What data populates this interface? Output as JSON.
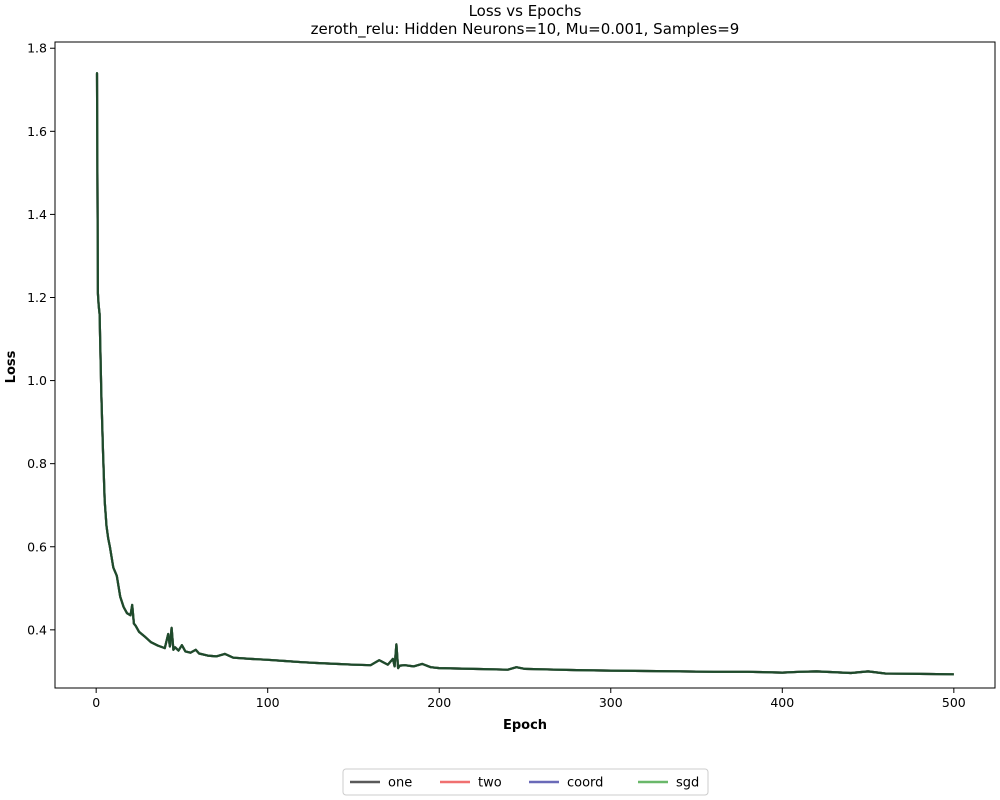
{
  "chart_data": {
    "type": "line",
    "title": "Loss vs Epochs",
    "subtitle": "zeroth_relu: Hidden Neurons=10, Mu=0.001, Samples=9",
    "xlabel": "Epoch",
    "ylabel": "Loss",
    "xlim": [
      -24,
      524
    ],
    "ylim": [
      0.26,
      1.815
    ],
    "x_ticks": [
      0,
      100,
      200,
      300,
      400,
      500
    ],
    "y_ticks": [
      0.4,
      0.6,
      0.8,
      1.0,
      1.2,
      1.4,
      1.6,
      1.8
    ],
    "x_tick_labels": [
      "0",
      "100",
      "200",
      "300",
      "400",
      "500"
    ],
    "y_tick_labels": [
      "0.4",
      "0.6",
      "0.8",
      "1.0",
      "1.2",
      "1.4",
      "1.6",
      "1.8"
    ],
    "legend_position": "bottom-center",
    "grid": false,
    "series": [
      {
        "name": "one",
        "color": "#595959"
      },
      {
        "name": "two",
        "color": "#f07070"
      },
      {
        "name": "coord",
        "color": "#6a6ab8"
      },
      {
        "name": "sgd",
        "color": "#6ab86a"
      }
    ],
    "curve_color": "#1f4a2c",
    "curve": {
      "x": [
        0,
        0.5,
        1,
        1.5,
        2,
        3,
        4,
        5,
        6,
        7,
        8,
        10,
        12,
        14,
        16,
        18,
        20,
        21,
        22,
        23,
        25,
        28,
        32,
        36,
        40,
        42,
        43,
        44,
        45,
        46,
        48,
        50,
        52,
        55,
        58,
        60,
        65,
        70,
        75,
        80,
        90,
        100,
        110,
        120,
        130,
        140,
        150,
        160,
        165,
        170,
        173,
        174,
        175,
        176,
        177,
        180,
        185,
        190,
        195,
        200,
        220,
        240,
        245,
        250,
        260,
        280,
        300,
        320,
        340,
        360,
        380,
        400,
        410,
        420,
        440,
        450,
        460,
        480,
        500
      ],
      "y": [
        1.74,
        1.74,
        1.21,
        1.18,
        1.16,
        0.97,
        0.83,
        0.71,
        0.65,
        0.62,
        0.6,
        0.55,
        0.53,
        0.48,
        0.455,
        0.44,
        0.435,
        0.46,
        0.415,
        0.41,
        0.395,
        0.385,
        0.37,
        0.362,
        0.356,
        0.39,
        0.36,
        0.405,
        0.352,
        0.358,
        0.35,
        0.363,
        0.348,
        0.345,
        0.352,
        0.343,
        0.338,
        0.336,
        0.342,
        0.333,
        0.33,
        0.328,
        0.325,
        0.322,
        0.32,
        0.318,
        0.316,
        0.315,
        0.327,
        0.316,
        0.33,
        0.312,
        0.365,
        0.308,
        0.314,
        0.315,
        0.312,
        0.318,
        0.31,
        0.308,
        0.306,
        0.304,
        0.31,
        0.306,
        0.305,
        0.303,
        0.302,
        0.301,
        0.3,
        0.299,
        0.299,
        0.297,
        0.299,
        0.3,
        0.296,
        0.3,
        0.295,
        0.294,
        0.293
      ]
    }
  }
}
